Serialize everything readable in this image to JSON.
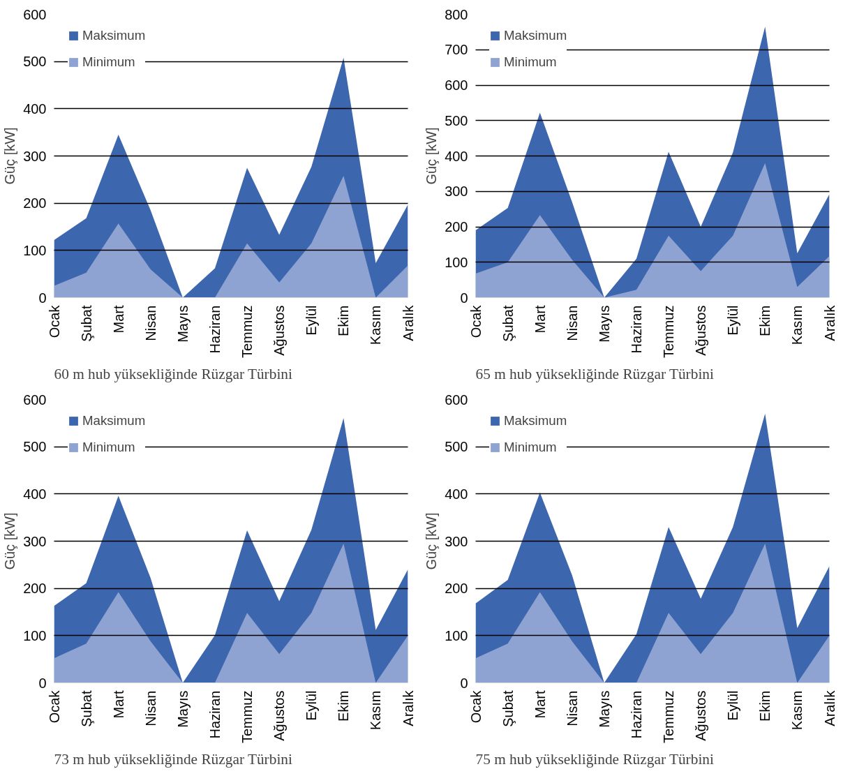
{
  "chart_data": [
    {
      "type": "area",
      "title": "60 m hub yüksekliğinde Rüzgar Türbini",
      "ylabel": "Güç [kW]",
      "categories": [
        "Ocak",
        "Şubat",
        "Mart",
        "Nisan",
        "Mayıs",
        "Haziran",
        "Temmuz",
        "Ağustos",
        "Eylül",
        "Ekim",
        "Kasım",
        "Aralık"
      ],
      "ylim": [
        0,
        600
      ],
      "yticks": [
        0,
        100,
        200,
        300,
        400,
        500,
        600
      ],
      "grid": "y",
      "legend": "top left",
      "series": [
        {
          "name": "Maksimum",
          "color": "#3c66ae",
          "values": [
            122,
            168,
            345,
            185,
            0,
            62,
            275,
            133,
            277,
            508,
            73,
            197
          ]
        },
        {
          "name": "Minimum",
          "color": "#8fa3d3",
          "values": [
            25,
            53,
            157,
            60,
            0,
            0,
            115,
            32,
            115,
            258,
            0,
            68
          ]
        }
      ]
    },
    {
      "type": "area",
      "title": "65 m hub yüksekliğinde Rüzgar Türbini",
      "ylabel": "Güç [kW]",
      "categories": [
        "Ocak",
        "Şubat",
        "Mart",
        "Nisan",
        "Mayıs",
        "Haziran",
        "Temmuz",
        "Ağustos",
        "Eylül",
        "Ekim",
        "Kasım",
        "Aralık"
      ],
      "ylim": [
        0,
        800
      ],
      "yticks": [
        0,
        100,
        200,
        300,
        400,
        500,
        600,
        700,
        800
      ],
      "grid": "y",
      "legend": "top left",
      "series": [
        {
          "name": "Maksimum",
          "color": "#3c66ae",
          "values": [
            190,
            253,
            522,
            270,
            0,
            110,
            412,
            200,
            410,
            765,
            125,
            292
          ]
        },
        {
          "name": "Minimum",
          "color": "#8fa3d3",
          "values": [
            68,
            100,
            233,
            107,
            0,
            22,
            175,
            75,
            175,
            380,
            30,
            117
          ]
        }
      ]
    },
    {
      "type": "area",
      "title": "73 m hub yüksekliğinde Rüzgar Türbini",
      "ylabel": "Güç [kW]",
      "categories": [
        "Ocak",
        "Şubat",
        "Mart",
        "Nisan",
        "Mayıs",
        "Haziran",
        "Temmuz",
        "Ağustos",
        "Eylül",
        "Ekim",
        "Kasım",
        "Aralık"
      ],
      "ylim": [
        0,
        600
      ],
      "yticks": [
        0,
        100,
        200,
        300,
        400,
        500,
        600
      ],
      "grid": "y",
      "legend": "top left",
      "series": [
        {
          "name": "Maksimum",
          "color": "#3c66ae",
          "values": [
            163,
            211,
            396,
            222,
            0,
            101,
            323,
            173,
            324,
            561,
            112,
            240
          ]
        },
        {
          "name": "Minimum",
          "color": "#8fa3d3",
          "values": [
            52,
            83,
            192,
            88,
            0,
            0,
            148,
            61,
            148,
            295,
            0,
            100
          ]
        }
      ]
    },
    {
      "type": "area",
      "title": "75 m hub yüksekliğinde Rüzgar Türbini",
      "ylabel": "Güç [kW]",
      "categories": [
        "Ocak",
        "Şubat",
        "Mart",
        "Nisan",
        "Mayıs",
        "Haziran",
        "Temmuz",
        "Ağustos",
        "Eylül",
        "Ekim",
        "Kasım",
        "Aralık"
      ],
      "ylim": [
        0,
        600
      ],
      "yticks": [
        0,
        100,
        200,
        300,
        400,
        500,
        600
      ],
      "grid": "y",
      "legend": "top left",
      "series": [
        {
          "name": "Maksimum",
          "color": "#3c66ae",
          "values": [
            168,
            218,
            403,
            228,
            0,
            103,
            330,
            178,
            330,
            570,
            116,
            247
          ]
        },
        {
          "name": "Minimum",
          "color": "#8fa3d3",
          "values": [
            52,
            83,
            192,
            88,
            0,
            0,
            148,
            61,
            148,
            295,
            0,
            100
          ]
        }
      ]
    }
  ]
}
